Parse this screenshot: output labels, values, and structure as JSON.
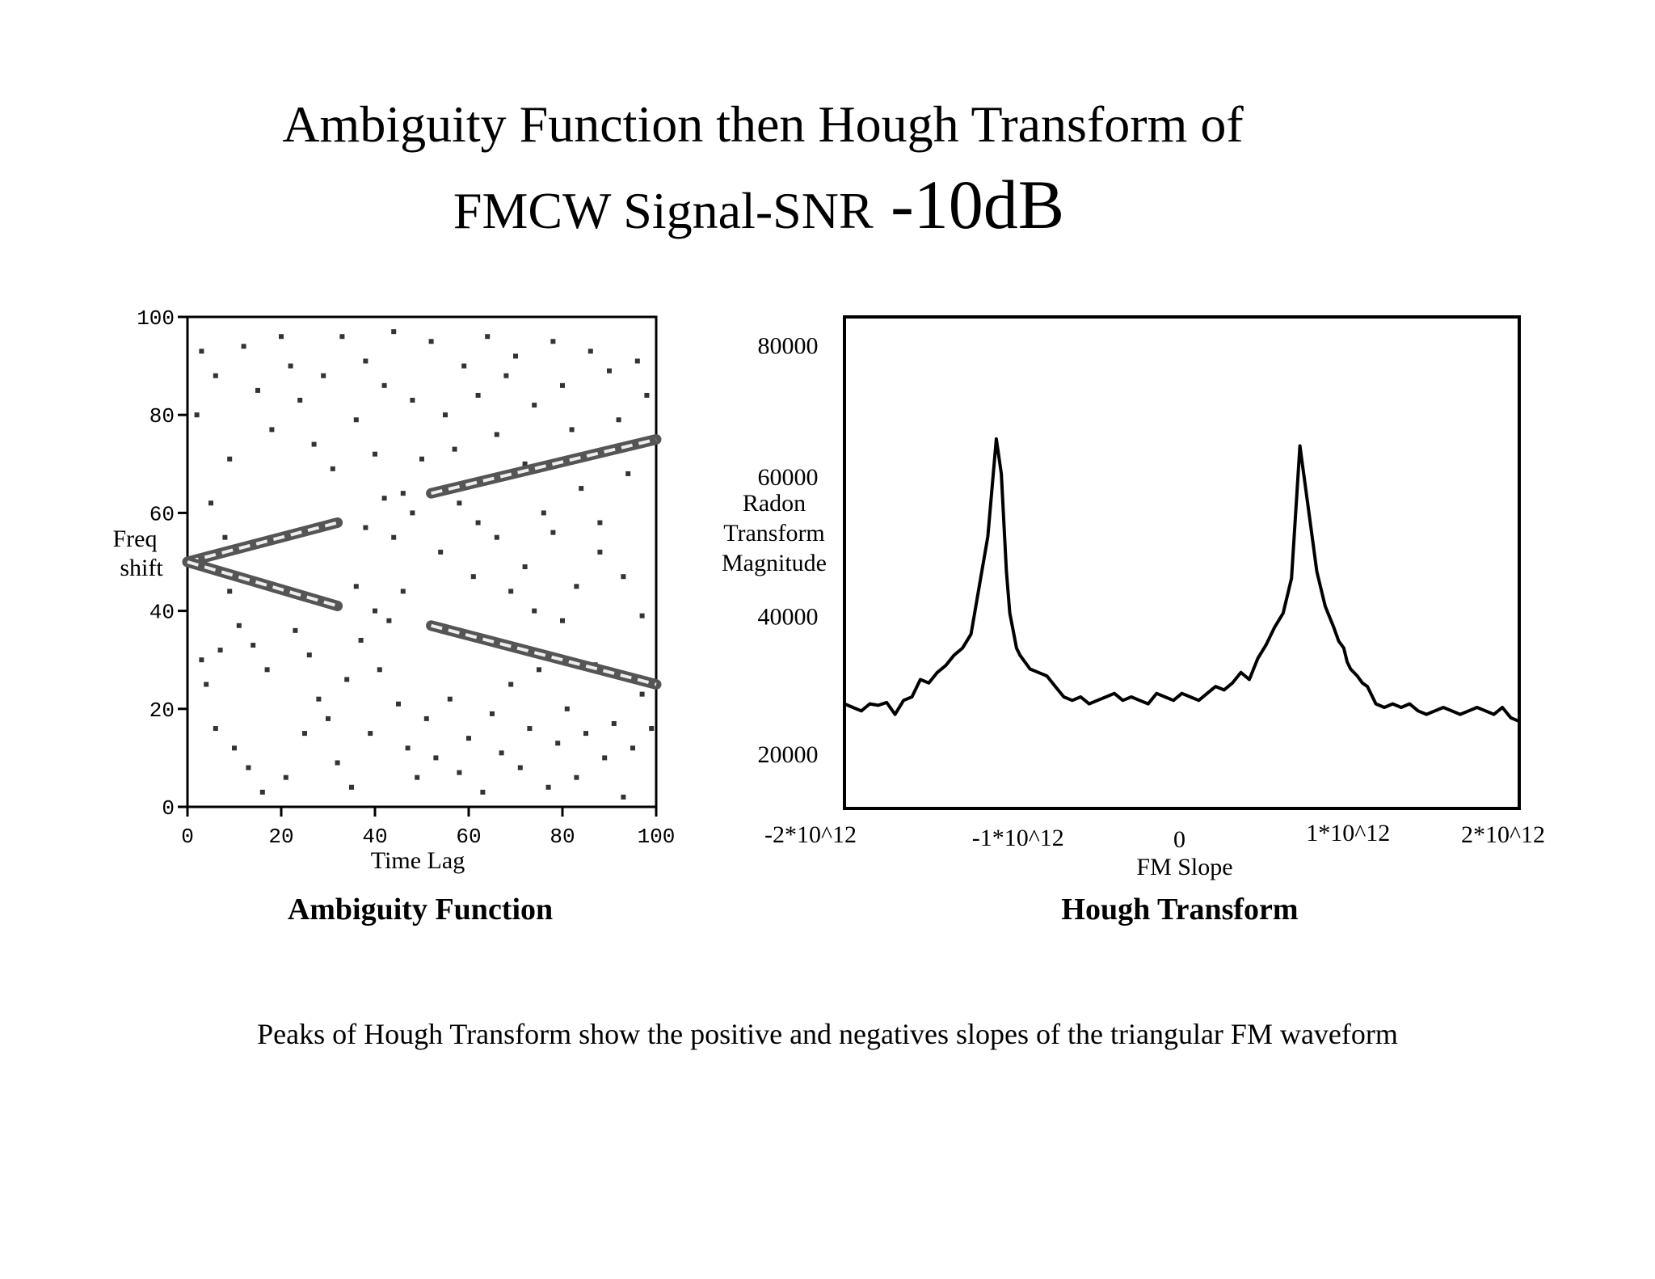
{
  "title": {
    "line1": "Ambiguity Function then Hough Transform of",
    "line2_prefix": "FMCW Signal-SNR",
    "line2_value": " -10dB"
  },
  "footnote": "Peaks of Hough Transform show the positive and negatives slopes of the triangular FM waveform",
  "chart_data": [
    {
      "type": "heatmap",
      "title": "Ambiguity Function",
      "xlabel": "Time Lag",
      "ylabel": "Freq shift",
      "xlim": [
        0,
        100
      ],
      "ylim": [
        0,
        100
      ],
      "xticks": [
        "0",
        "20",
        "40",
        "60",
        "80",
        "100"
      ],
      "yticks": [
        "0",
        "20",
        "40",
        "60",
        "80",
        "100"
      ],
      "grid": false,
      "ridges": [
        {
          "name": "",
          "x": [
            0,
            32
          ],
          "y": [
            50,
            58
          ]
        },
        {
          "name": "",
          "x": [
            0,
            32
          ],
          "y": [
            50,
            41
          ]
        },
        {
          "name": "",
          "x": [
            52,
            100
          ],
          "y": [
            64,
            75
          ]
        },
        {
          "name": "",
          "x": [
            52,
            100
          ],
          "y": [
            37,
            25
          ]
        }
      ],
      "noise": [
        [
          3,
          93
        ],
        [
          6,
          88
        ],
        [
          2,
          80
        ],
        [
          9,
          71
        ],
        [
          12,
          94
        ],
        [
          15,
          85
        ],
        [
          18,
          77
        ],
        [
          20,
          96
        ],
        [
          22,
          90
        ],
        [
          24,
          83
        ],
        [
          27,
          74
        ],
        [
          29,
          88
        ],
        [
          31,
          69
        ],
        [
          33,
          96
        ],
        [
          36,
          79
        ],
        [
          38,
          91
        ],
        [
          40,
          72
        ],
        [
          42,
          86
        ],
        [
          44,
          97
        ],
        [
          46,
          64
        ],
        [
          48,
          83
        ],
        [
          50,
          71
        ],
        [
          52,
          95
        ],
        [
          55,
          80
        ],
        [
          57,
          73
        ],
        [
          59,
          90
        ],
        [
          62,
          84
        ],
        [
          64,
          96
        ],
        [
          66,
          76
        ],
        [
          68,
          88
        ],
        [
          70,
          92
        ],
        [
          72,
          70
        ],
        [
          74,
          82
        ],
        [
          76,
          60
        ],
        [
          78,
          95
        ],
        [
          80,
          86
        ],
        [
          82,
          77
        ],
        [
          84,
          65
        ],
        [
          86,
          93
        ],
        [
          88,
          58
        ],
        [
          90,
          89
        ],
        [
          92,
          79
        ],
        [
          94,
          68
        ],
        [
          96,
          91
        ],
        [
          98,
          84
        ],
        [
          5,
          62
        ],
        [
          8,
          55
        ],
        [
          11,
          37
        ],
        [
          14,
          33
        ],
        [
          17,
          28
        ],
        [
          19,
          45
        ],
        [
          23,
          36
        ],
        [
          26,
          31
        ],
        [
          28,
          22
        ],
        [
          30,
          18
        ],
        [
          34,
          26
        ],
        [
          37,
          34
        ],
        [
          39,
          15
        ],
        [
          41,
          28
        ],
        [
          43,
          38
        ],
        [
          45,
          21
        ],
        [
          47,
          12
        ],
        [
          49,
          6
        ],
        [
          51,
          18
        ],
        [
          53,
          10
        ],
        [
          56,
          22
        ],
        [
          58,
          7
        ],
        [
          60,
          14
        ],
        [
          63,
          3
        ],
        [
          65,
          19
        ],
        [
          67,
          11
        ],
        [
          69,
          25
        ],
        [
          71,
          8
        ],
        [
          73,
          16
        ],
        [
          75,
          28
        ],
        [
          77,
          4
        ],
        [
          79,
          13
        ],
        [
          81,
          20
        ],
        [
          83,
          6
        ],
        [
          85,
          15
        ],
        [
          87,
          29
        ],
        [
          89,
          10
        ],
        [
          91,
          17
        ],
        [
          93,
          2
        ],
        [
          95,
          12
        ],
        [
          97,
          23
        ],
        [
          99,
          16
        ],
        [
          4,
          25
        ],
        [
          7,
          32
        ],
        [
          10,
          12
        ],
        [
          13,
          8
        ],
        [
          16,
          3
        ],
        [
          21,
          6
        ],
        [
          25,
          15
        ],
        [
          32,
          9
        ],
        [
          35,
          4
        ],
        [
          44,
          55
        ],
        [
          48,
          60
        ],
        [
          54,
          52
        ],
        [
          61,
          47
        ],
        [
          66,
          55
        ],
        [
          72,
          49
        ],
        [
          78,
          56
        ],
        [
          83,
          45
        ],
        [
          88,
          52
        ],
        [
          93,
          47
        ],
        [
          97,
          39
        ],
        [
          36,
          45
        ],
        [
          40,
          40
        ],
        [
          46,
          44
        ],
        [
          38,
          57
        ],
        [
          42,
          63
        ],
        [
          58,
          62
        ],
        [
          62,
          58
        ],
        [
          69,
          44
        ],
        [
          74,
          40
        ],
        [
          80,
          38
        ],
        [
          3,
          30
        ],
        [
          6,
          16
        ],
        [
          9,
          44
        ]
      ]
    },
    {
      "type": "line",
      "title": "Hough Transform",
      "xlabel": "FM Slope",
      "ylabel": "Radon\nTransform\nMagnitude",
      "xlim": [
        -2.0,
        2.0
      ],
      "ylim": [
        12000,
        82500
      ],
      "xticks": [
        "-2*10^12",
        "-1*10^12",
        "0",
        "1*10^12",
        "2*10^12"
      ],
      "yticks": [
        "20000",
        "40000",
        "60000",
        "80000"
      ],
      "grid": false,
      "series": [
        {
          "name": "",
          "x": [
            -2.0,
            -1.95,
            -1.9,
            -1.85,
            -1.8,
            -1.75,
            -1.7,
            -1.65,
            -1.6,
            -1.55,
            -1.5,
            -1.45,
            -1.4,
            -1.35,
            -1.3,
            -1.25,
            -1.2,
            -1.15,
            -1.1,
            -1.07,
            -1.04,
            -1.02,
            -1.0,
            -0.98,
            -0.96,
            -0.93,
            -0.9,
            -0.85,
            -0.8,
            -0.75,
            -0.7,
            -0.65,
            -0.6,
            -0.55,
            -0.5,
            -0.45,
            -0.4,
            -0.35,
            -0.3,
            -0.25,
            -0.2,
            -0.15,
            -0.1,
            -0.05,
            0.0,
            0.05,
            0.1,
            0.15,
            0.2,
            0.25,
            0.3,
            0.35,
            0.4,
            0.45,
            0.5,
            0.55,
            0.6,
            0.65,
            0.7,
            0.75,
            0.8,
            0.85,
            0.9,
            0.93,
            0.96,
            0.98,
            1.0,
            1.02,
            1.04,
            1.07,
            1.1,
            1.15,
            1.2,
            1.25,
            1.3,
            1.35,
            1.4,
            1.45,
            1.5,
            1.55,
            1.6,
            1.65,
            1.7,
            1.75,
            1.8,
            1.85,
            1.9,
            1.95,
            2.0
          ],
          "y": [
            27000,
            26500,
            26000,
            27000,
            26800,
            27200,
            25500,
            27500,
            28000,
            30500,
            30000,
            31500,
            32500,
            34000,
            35000,
            37000,
            44000,
            51000,
            65000,
            60000,
            46000,
            40000,
            37500,
            35000,
            34000,
            33000,
            32000,
            31500,
            31000,
            29500,
            28000,
            27500,
            28000,
            27000,
            27500,
            28000,
            28500,
            27500,
            28000,
            27500,
            27000,
            28500,
            28000,
            27500,
            28500,
            28000,
            27500,
            28500,
            29500,
            29000,
            30000,
            31500,
            30500,
            33500,
            35500,
            38000,
            40000,
            45000,
            64000,
            55000,
            46000,
            41000,
            38000,
            36000,
            35000,
            33000,
            32000,
            31500,
            31000,
            30000,
            29500,
            27000,
            26500,
            27000,
            26500,
            27000,
            26000,
            25500,
            26000,
            26500,
            26000,
            25500,
            26000,
            26500,
            26000,
            25500,
            26500,
            25000,
            24500
          ]
        }
      ]
    }
  ]
}
